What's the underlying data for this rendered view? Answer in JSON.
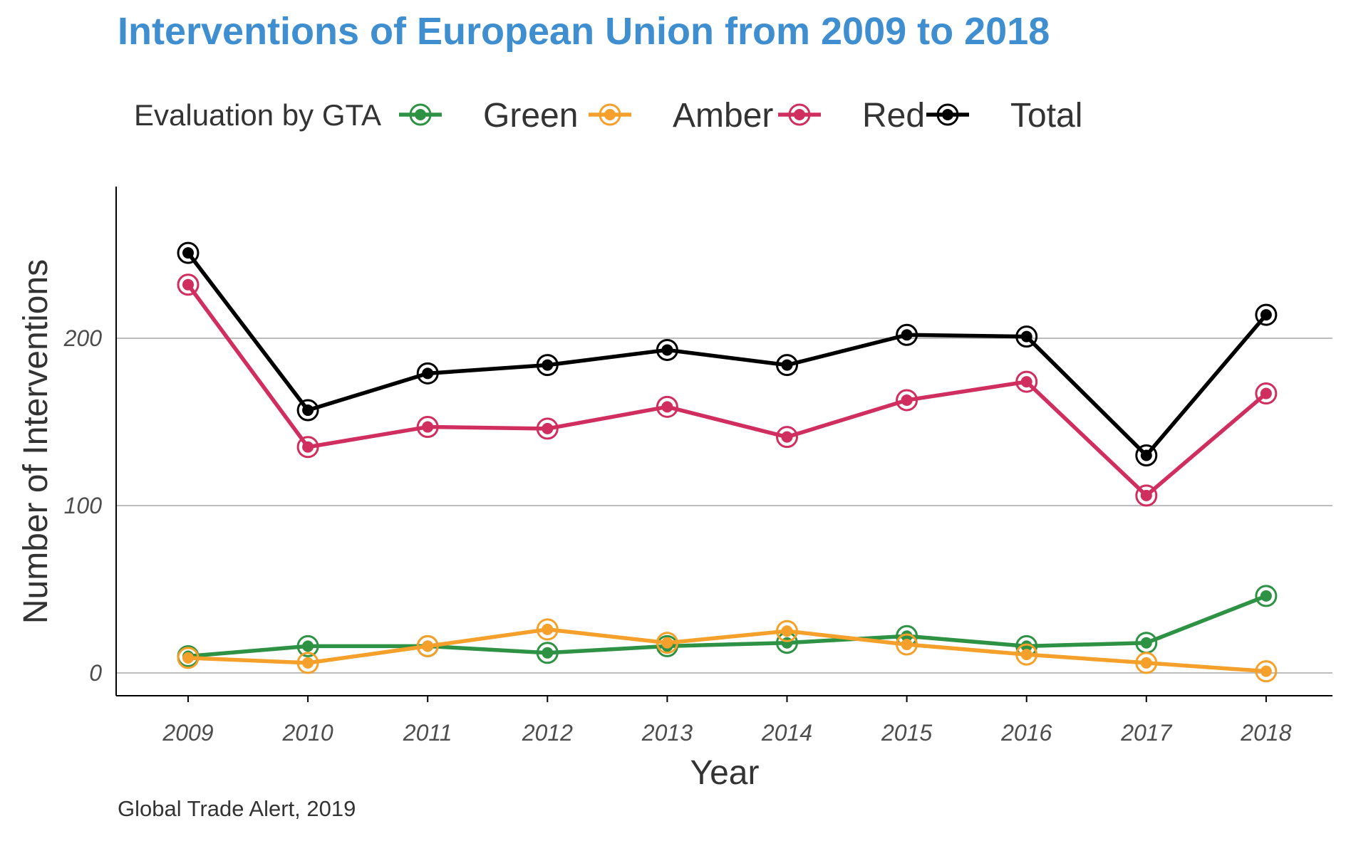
{
  "chart_data": {
    "type": "line",
    "title": "Interventions of European Union from 2009 to 2018",
    "xlabel": "Year",
    "ylabel": "Number of Interventions",
    "caption": "Global Trade Alert, 2019",
    "legend_title": "Evaluation by GTA",
    "legend_position": "top",
    "x": [
      2009,
      2010,
      2011,
      2012,
      2013,
      2014,
      2015,
      2016,
      2017,
      2018
    ],
    "x_tick_labels": [
      "2009",
      "2010",
      "2011",
      "2012",
      "2013",
      "2014",
      "2015",
      "2016",
      "2017",
      "2018"
    ],
    "ylim": [
      -13,
      290
    ],
    "y_ticks": [
      0,
      100,
      200
    ],
    "y_tick_labels": [
      "0",
      "100",
      "200"
    ],
    "grid": "horizontal major lines",
    "series": [
      {
        "name": "Green",
        "color": "#2e9244",
        "values": [
          10,
          16,
          16,
          12,
          16,
          18,
          22,
          16,
          18,
          46
        ]
      },
      {
        "name": "Amber",
        "color": "#f4a02a",
        "values": [
          9,
          6,
          16,
          26,
          18,
          25,
          17,
          11,
          6,
          1
        ]
      },
      {
        "name": "Red",
        "color": "#cf2e5e",
        "values": [
          232,
          135,
          147,
          146,
          159,
          141,
          163,
          174,
          106,
          167
        ]
      },
      {
        "name": "Total",
        "color": "#000000",
        "values": [
          251,
          157,
          179,
          184,
          193,
          184,
          202,
          201,
          130,
          214
        ]
      }
    ]
  },
  "colors": {
    "title": "#3f8ed0",
    "grid": "#bdbdbd",
    "axis": "#000000"
  }
}
